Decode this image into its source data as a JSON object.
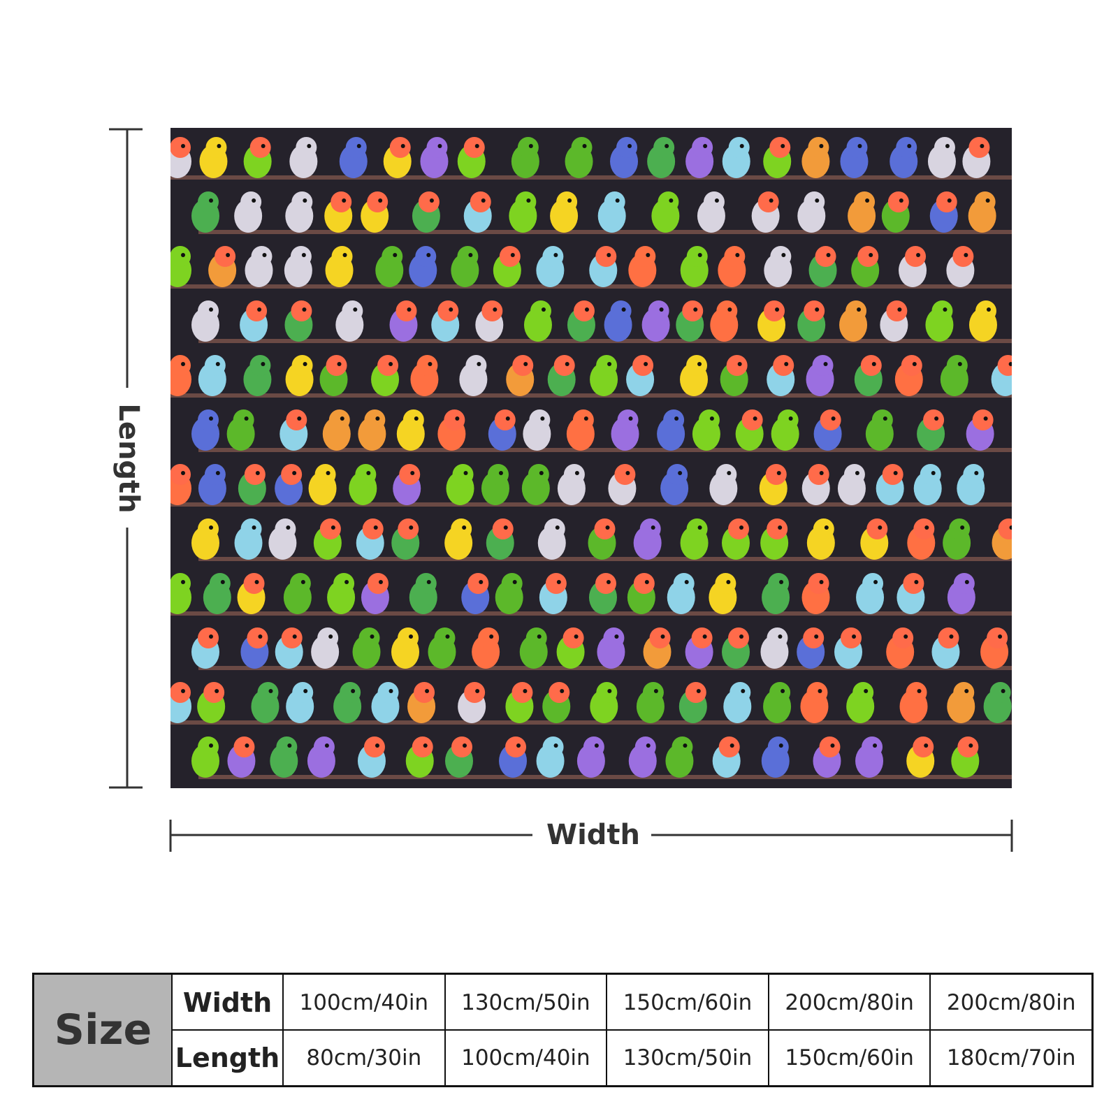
{
  "dimensions": {
    "length": "Length",
    "width": "Width"
  },
  "table": {
    "header": "Size",
    "rows": [
      [
        "Width",
        "100cm/40in",
        "130cm/50in",
        "150cm/60in",
        "200cm/80in",
        "200cm/80in"
      ],
      [
        "Length",
        "80cm/30in",
        "100cm/40in",
        "130cm/50in",
        "150cm/60in",
        "180cm/70in"
      ]
    ]
  }
}
